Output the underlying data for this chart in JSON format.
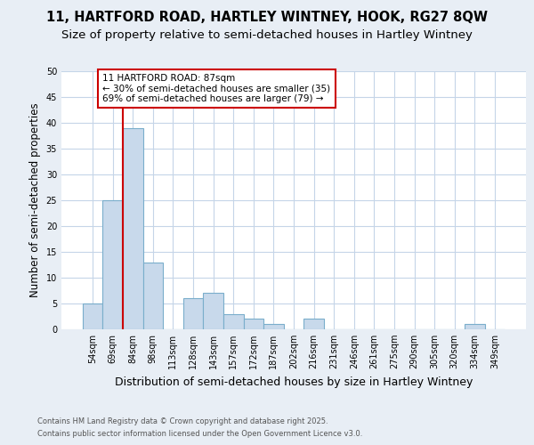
{
  "title1": "11, HARTFORD ROAD, HARTLEY WINTNEY, HOOK, RG27 8QW",
  "title2": "Size of property relative to semi-detached houses in Hartley Wintney",
  "xlabel": "Distribution of semi-detached houses by size in Hartley Wintney",
  "ylabel": "Number of semi-detached properties",
  "categories": [
    "54sqm",
    "69sqm",
    "84sqm",
    "98sqm",
    "113sqm",
    "128sqm",
    "143sqm",
    "157sqm",
    "172sqm",
    "187sqm",
    "202sqm",
    "216sqm",
    "231sqm",
    "246sqm",
    "261sqm",
    "275sqm",
    "290sqm",
    "305sqm",
    "320sqm",
    "334sqm",
    "349sqm"
  ],
  "values": [
    5,
    25,
    39,
    13,
    0,
    6,
    7,
    3,
    2,
    1,
    0,
    2,
    0,
    0,
    0,
    0,
    0,
    0,
    0,
    1,
    0
  ],
  "bar_color": "#c8d9eb",
  "bar_edge_color": "#7aaecb",
  "vline_x": 1.5,
  "annotation_title": "11 HARTFORD ROAD: 87sqm",
  "annotation_line1": "← 30% of semi-detached houses are smaller (35)",
  "annotation_line2": "69% of semi-detached houses are larger (79) →",
  "ylim": [
    0,
    50
  ],
  "yticks": [
    0,
    5,
    10,
    15,
    20,
    25,
    30,
    35,
    40,
    45,
    50
  ],
  "footnote1": "Contains HM Land Registry data © Crown copyright and database right 2025.",
  "footnote2": "Contains public sector information licensed under the Open Government Licence v3.0.",
  "background_color": "#e8eef5",
  "plot_bg_color": "#ffffff",
  "grid_color": "#c5d5e8",
  "annotation_box_color": "#ffffff",
  "annotation_border_color": "#cc0000",
  "vline_color": "#cc0000",
  "title1_fontsize": 10.5,
  "title2_fontsize": 9.5,
  "tick_fontsize": 7,
  "ylabel_fontsize": 8.5,
  "xlabel_fontsize": 9,
  "annotation_fontsize": 7.5,
  "footnote_fontsize": 6
}
